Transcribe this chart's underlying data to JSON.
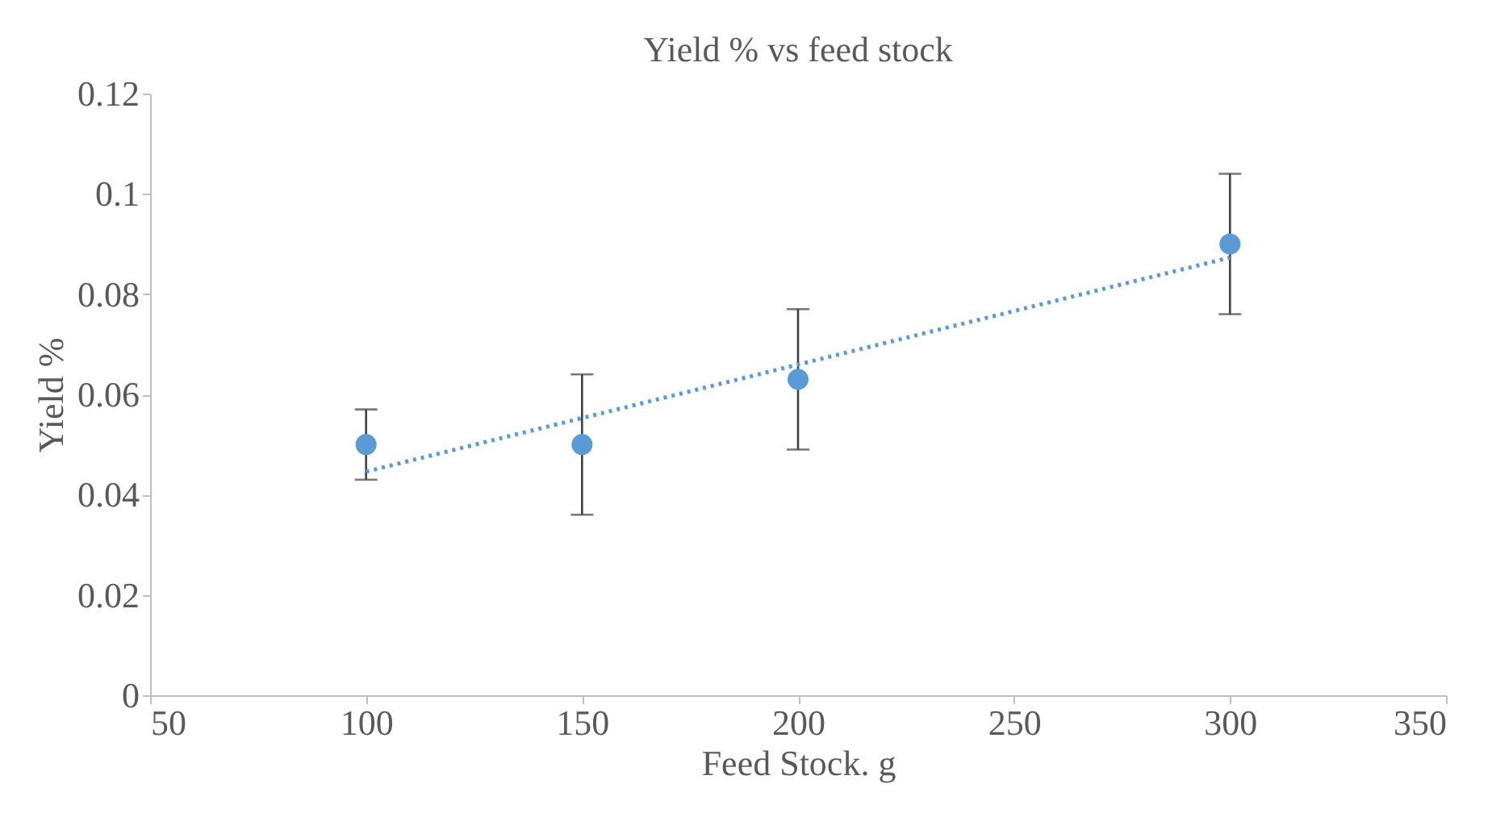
{
  "chart_data": {
    "type": "scatter",
    "title": "Yield % vs feed stock",
    "xlabel": "Feed Stock. g",
    "ylabel": "Yield %",
    "xlim": [
      50,
      350
    ],
    "xticks": [
      50,
      100,
      150,
      200,
      250,
      300,
      350
    ],
    "ylim": [
      0,
      0.12
    ],
    "yticks": [
      0,
      0.02,
      0.04,
      0.06,
      0.08,
      0.1,
      0.12
    ],
    "grid": false,
    "series": [
      {
        "color": "#5b9bd5",
        "marker": "circle",
        "x": [
          100,
          150,
          200,
          300
        ],
        "values": [
          0.05,
          0.05,
          0.063,
          0.09
        ],
        "errors": [
          0.007,
          0.014,
          0.014,
          0.014
        ]
      },
      {
        "type": "line",
        "color": "#5b9bd5",
        "marker": "none",
        "line_style": "dotted",
        "x": [
          100,
          300
        ],
        "values": [
          0.0446,
          0.0873
        ]
      }
    ]
  }
}
